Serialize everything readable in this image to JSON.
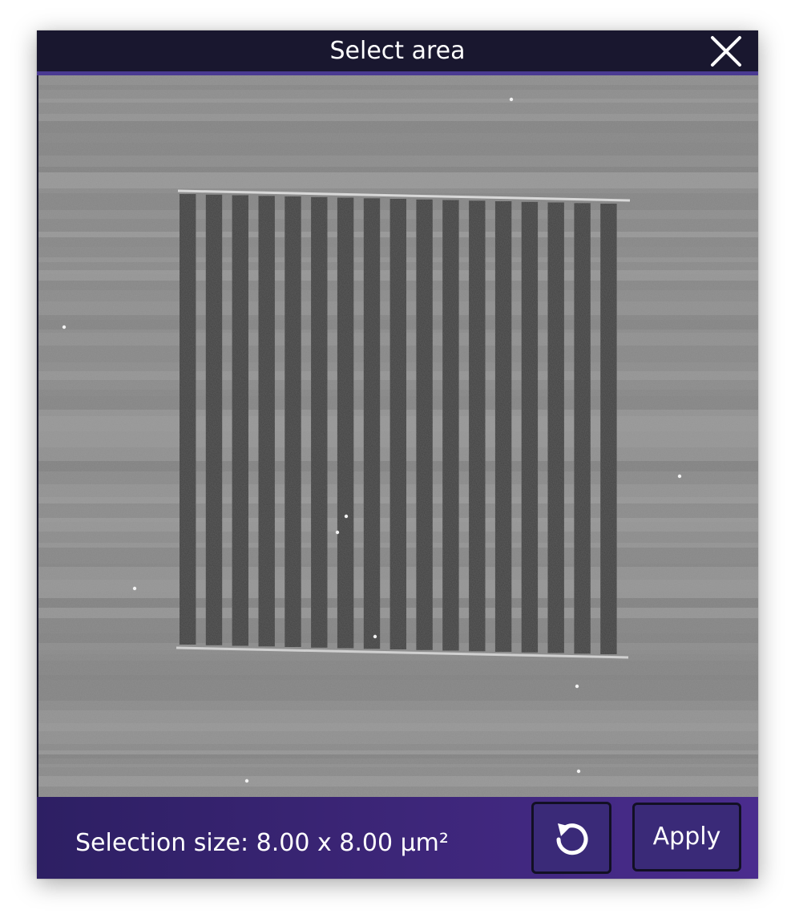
{
  "dialog": {
    "title": "Select area",
    "close_icon": "close-icon",
    "selection_size_label": "Selection size:",
    "selection_size_value": "8.00 x 8.00 µm²",
    "reset_icon": "rotate-ccw-icon",
    "apply_label": "Apply"
  },
  "image": {
    "description_icon": "microscope-scan-image",
    "stripe_count": 17
  },
  "colors": {
    "titlebar": "#19172f",
    "accent": "#4a3a92",
    "footer_start": "#2d1f63",
    "footer_end": "#4a2c8e"
  }
}
